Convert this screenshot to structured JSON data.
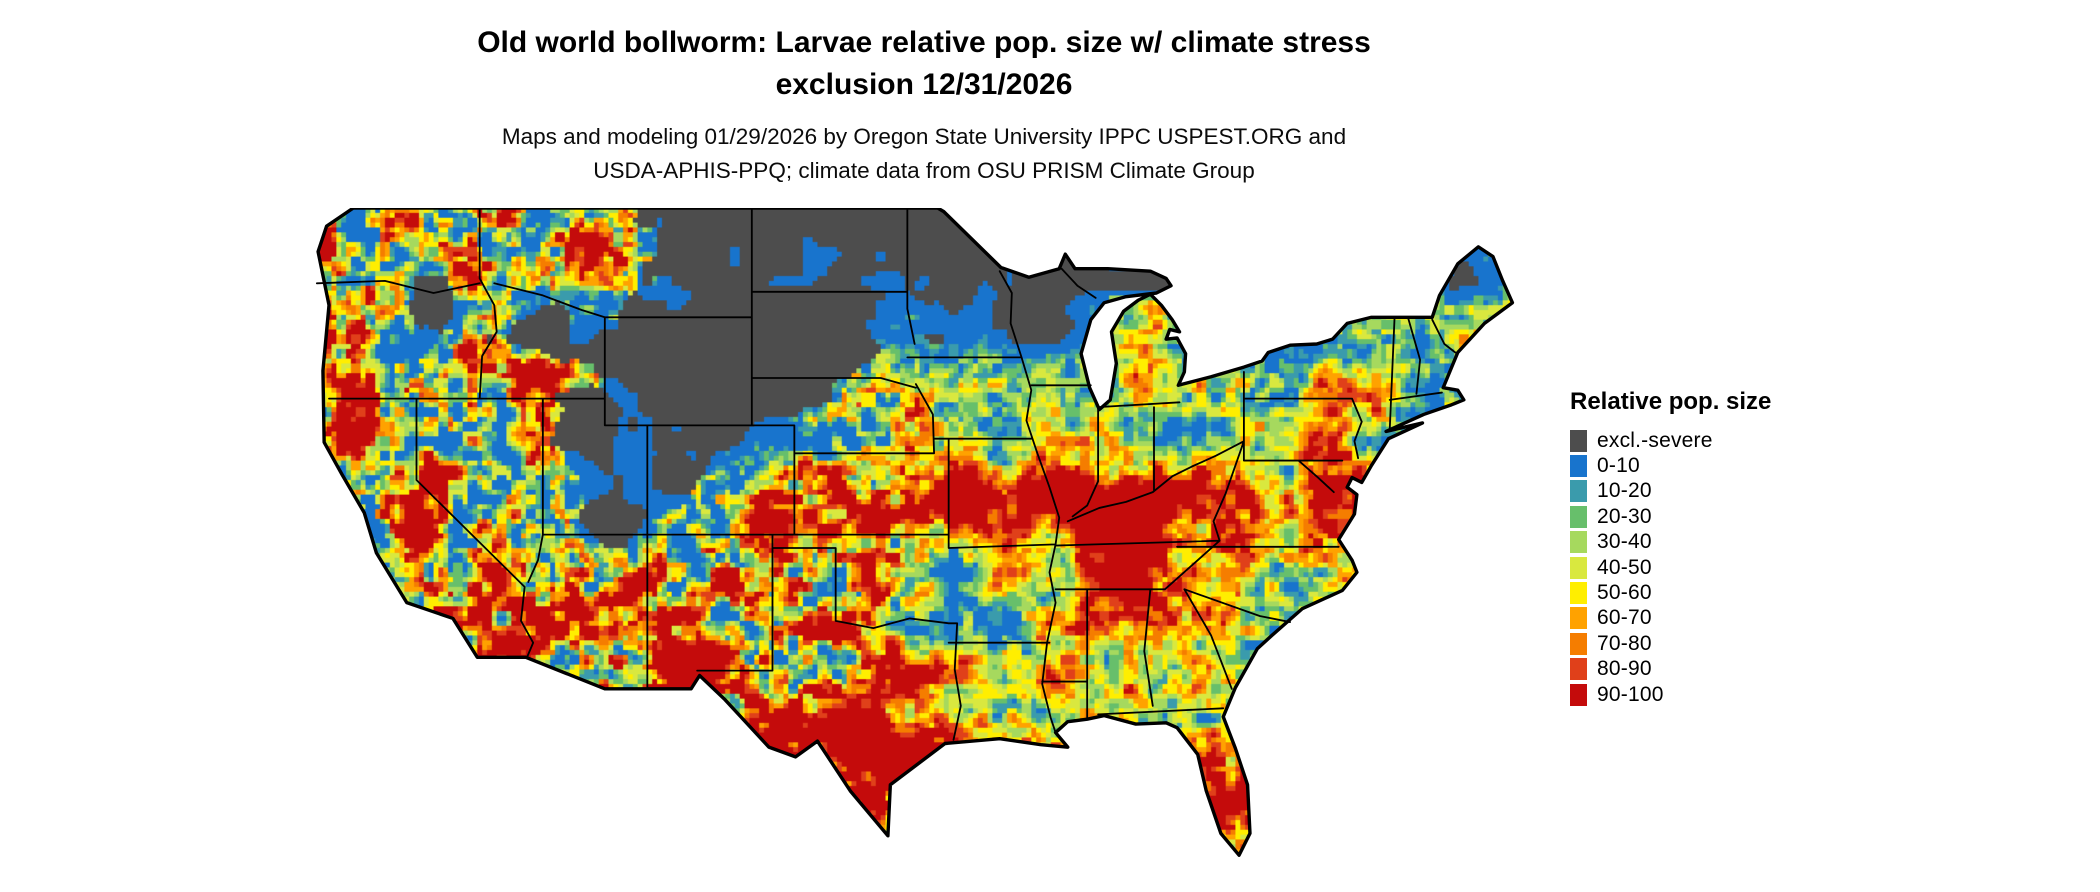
{
  "header": {
    "title_line1": "Old world bollworm: Larvae relative pop. size w/ climate stress",
    "title_line2": "exclusion 12/31/2026",
    "subtitle_line1": "Maps and modeling 01/29/2026 by Oregon State University IPPC USPEST.ORG and",
    "subtitle_line2": "USDA-APHIS-PPQ; climate data from OSU PRISM Climate Group"
  },
  "map": {
    "description": "Continental United States raster map of larvae relative population size with climate stress exclusion"
  },
  "legend": {
    "title": "Relative pop. size",
    "items": [
      {
        "label": "excl.-severe",
        "color": "#4d4d4d"
      },
      {
        "label": "0-10",
        "color": "#1874cd"
      },
      {
        "label": "10-20",
        "color": "#3a9bac"
      },
      {
        "label": "20-30",
        "color": "#67bf6b"
      },
      {
        "label": "30-40",
        "color": "#a6d95e"
      },
      {
        "label": "40-50",
        "color": "#d9e83f"
      },
      {
        "label": "50-60",
        "color": "#ffee00"
      },
      {
        "label": "60-70",
        "color": "#ffa200"
      },
      {
        "label": "70-80",
        "color": "#f57d00"
      },
      {
        "label": "80-90",
        "color": "#e0401a"
      },
      {
        "label": "90-100",
        "color": "#c40b0b"
      }
    ]
  }
}
